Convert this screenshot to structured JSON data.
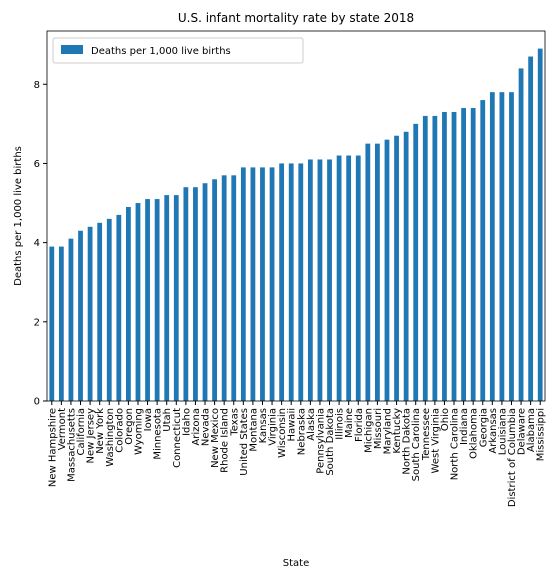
{
  "chart_data": {
    "type": "bar",
    "title": "U.S. infant mortality rate by state 2018",
    "x_label": "State",
    "y_label": "Deaths per 1,000 live births",
    "categories": [
      "New Hampshire",
      "Vermont",
      "Massachusetts",
      "California",
      "New Jersey",
      "New York",
      "Washington",
      "Colorado",
      "Oregon",
      "Wyoming",
      "Iowa",
      "Minnesota",
      "Utah",
      "Connecticut",
      "Idaho",
      "Arizona",
      "Nevada",
      "New Mexico",
      "Rhode Island",
      "Texas",
      "United States",
      "Montana",
      "Kansas",
      "Virginia",
      "Wisconsin",
      "Hawaii",
      "Nebraska",
      "Alaska",
      "Pennsylvania",
      "South Dakota",
      "Illinois",
      "Maine",
      "Florida",
      "Michigan",
      "Missouri",
      "Maryland",
      "Kentucky",
      "North Dakota",
      "South Carolina",
      "Tennessee",
      "West Virginia",
      "Ohio",
      "North Carolina",
      "Indiana",
      "Oklahoma",
      "Georgia",
      "Arkansas",
      "Louisiana",
      "District of Columbia",
      "Delaware",
      "Alabama",
      "Mississippi"
    ],
    "series": [
      {
        "name": "Deaths per 1,000 live births",
        "color": "#1f77b4",
        "values": [
          3.9,
          3.9,
          4.1,
          4.3,
          4.4,
          4.5,
          4.6,
          4.7,
          4.9,
          5.0,
          5.1,
          5.1,
          5.2,
          5.2,
          5.4,
          5.4,
          5.5,
          5.6,
          5.7,
          5.7,
          5.9,
          5.9,
          5.9,
          5.9,
          6.0,
          6.0,
          6.0,
          6.1,
          6.1,
          6.1,
          6.2,
          6.2,
          6.2,
          6.5,
          6.5,
          6.6,
          6.7,
          6.8,
          7.0,
          7.2,
          7.2,
          7.3,
          7.3,
          7.4,
          7.4,
          7.6,
          7.8,
          7.8,
          7.8,
          8.4,
          8.7,
          8.9
        ]
      }
    ],
    "ylim": [
      0,
      9.345
    ],
    "yticks": [
      0,
      2,
      4,
      6,
      8
    ],
    "legend": "upper left"
  }
}
